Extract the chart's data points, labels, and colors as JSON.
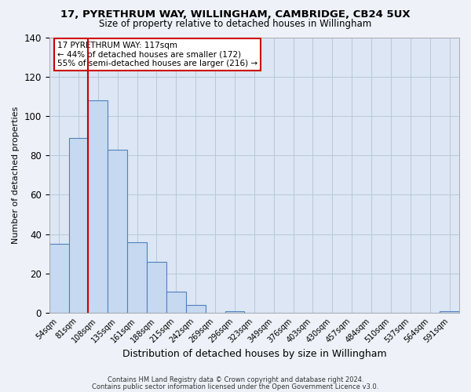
{
  "title": "17, PYRETHRUM WAY, WILLINGHAM, CAMBRIDGE, CB24 5UX",
  "subtitle": "Size of property relative to detached houses in Willingham",
  "xlabel": "Distribution of detached houses by size in Willingham",
  "ylabel": "Number of detached properties",
  "bar_labels": [
    "54sqm",
    "81sqm",
    "108sqm",
    "135sqm",
    "161sqm",
    "188sqm",
    "215sqm",
    "242sqm",
    "269sqm",
    "296sqm",
    "323sqm",
    "349sqm",
    "376sqm",
    "403sqm",
    "430sqm",
    "457sqm",
    "484sqm",
    "510sqm",
    "537sqm",
    "564sqm",
    "591sqm"
  ],
  "bar_values": [
    35,
    89,
    108,
    83,
    36,
    26,
    11,
    4,
    0,
    1,
    0,
    0,
    0,
    0,
    0,
    0,
    0,
    0,
    0,
    0,
    1
  ],
  "bar_color": "#c6d9f0",
  "bar_edge_color": "#4f81bd",
  "vline_color": "#cc0000",
  "ylim": [
    0,
    140
  ],
  "yticks": [
    0,
    20,
    40,
    60,
    80,
    100,
    120,
    140
  ],
  "annotation_line1": "17 PYRETHRUM WAY: 117sqm",
  "annotation_line2": "← 44% of detached houses are smaller (172)",
  "annotation_line3": "55% of semi-detached houses are larger (216) →",
  "annotation_box_color": "#ffffff",
  "annotation_box_edge": "#cc0000",
  "footer_line1": "Contains HM Land Registry data © Crown copyright and database right 2024.",
  "footer_line2": "Contains public sector information licensed under the Open Government Licence v3.0.",
  "background_color": "#eef2f8",
  "plot_bg_color": "#dce6f5"
}
